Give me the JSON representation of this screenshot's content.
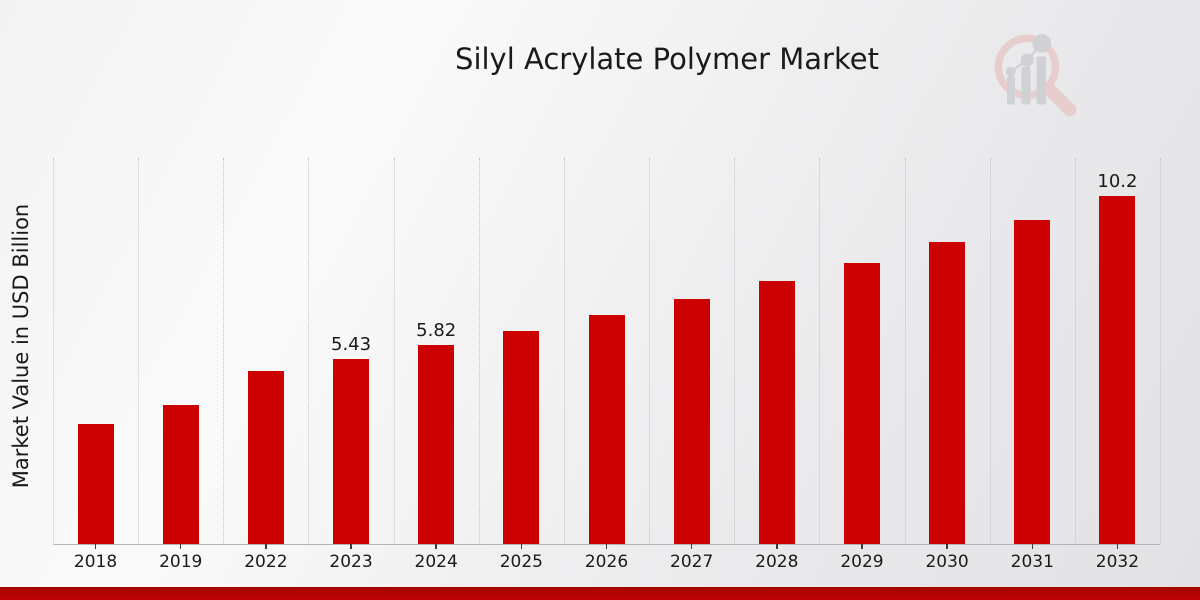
{
  "title": "Silyl Acrylate Polymer Market",
  "watermark": {
    "icon": "market-research-magnifier-bar-chart-logo",
    "ring_color": "#e7cecd",
    "glyph_color": "#d0d1d5"
  },
  "footer": {
    "accent_color_top": "#a30303",
    "accent_color_bottom": "#bf0302"
  },
  "chart_data": {
    "type": "bar",
    "title": "Silyl Acrylate Polymer Market",
    "xlabel": "",
    "ylabel": "Market Value in USD Billion",
    "categories": [
      "2018",
      "2019",
      "2022",
      "2023",
      "2024",
      "2025",
      "2026",
      "2027",
      "2028",
      "2029",
      "2030",
      "2031",
      "2032"
    ],
    "values": [
      3.5,
      4.08,
      5.06,
      5.43,
      5.82,
      6.24,
      6.69,
      7.17,
      7.69,
      8.24,
      8.84,
      9.48,
      10.2
    ],
    "bar_labels": [
      "",
      "",
      "",
      "5.43",
      "5.82",
      "",
      "",
      "",
      "",
      "",
      "",
      "",
      "10.2"
    ],
    "ylim": [
      0,
      11.3
    ],
    "bar_color": "#cb0102",
    "grid": "vertical-dotted",
    "gridline_color": "#c4c4c6",
    "legend": "none"
  }
}
